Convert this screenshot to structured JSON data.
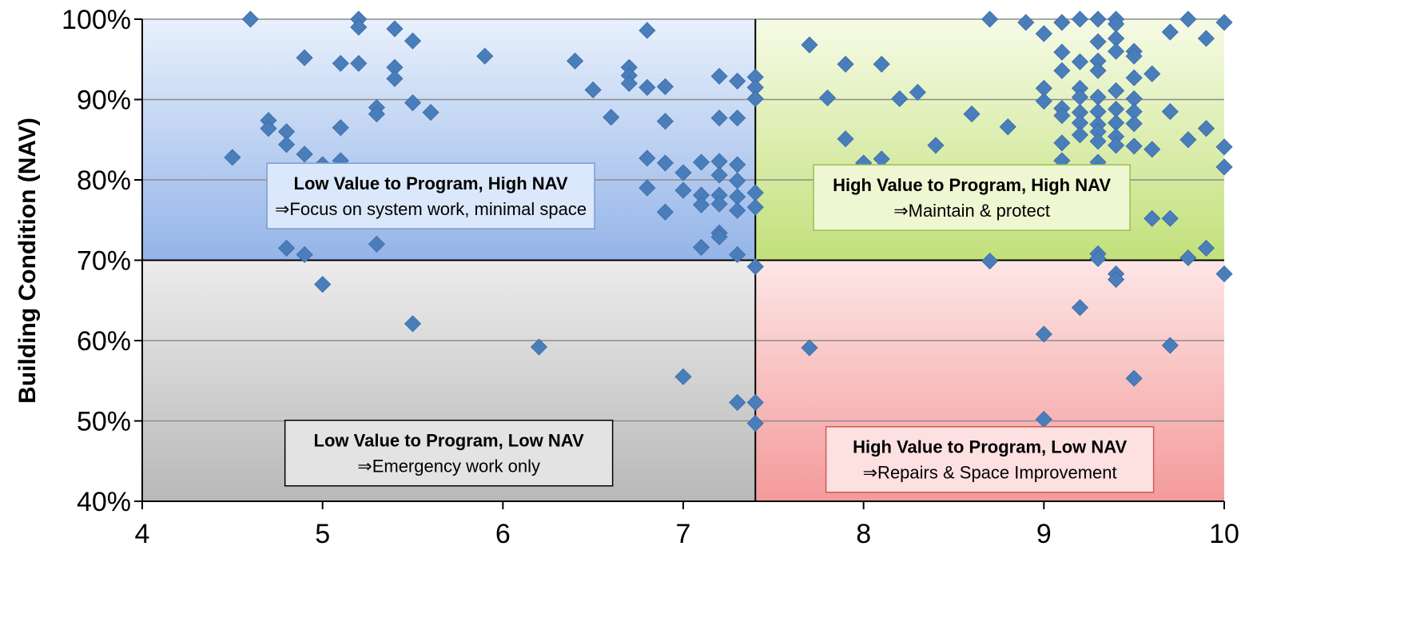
{
  "chart_data": {
    "type": "scatter",
    "title": "",
    "xlabel": "",
    "ylabel": "Building Condition (NAV)",
    "xlim": [
      4,
      10
    ],
    "ylim": [
      40,
      100
    ],
    "x_ticks": [
      "4",
      "5",
      "6",
      "7",
      "8",
      "9",
      "10"
    ],
    "y_ticks": [
      "40%",
      "50%",
      "60%",
      "70%",
      "80%",
      "90%",
      "100%"
    ],
    "grid": "horizontal",
    "marker_color": "#4a7ebb",
    "marker": "diamond",
    "divider": {
      "x": 7.4,
      "y": 70
    },
    "quadrants": [
      {
        "id": "top-left",
        "x_range": [
          4,
          7.4
        ],
        "y_range": [
          70,
          100
        ],
        "fill_top": "#e8f0fc",
        "fill_bottom": "#94b4e8",
        "title": "Low Value to Program, High NAV",
        "action": "⇒Focus on system work, minimal space",
        "box_at": {
          "x": 5.6,
          "y": 78
        }
      },
      {
        "id": "top-right",
        "x_range": [
          7.4,
          10
        ],
        "y_range": [
          70,
          100
        ],
        "fill_top": "#f6fbe6",
        "fill_bottom": "#c2e07a",
        "title": "High Value to Program, High NAV",
        "action": "⇒Maintain & protect",
        "box_at": {
          "x": 8.6,
          "y": 77.8
        }
      },
      {
        "id": "bottom-left",
        "x_range": [
          4,
          7.4
        ],
        "y_range": [
          40,
          70
        ],
        "fill_top": "#ececec",
        "fill_bottom": "#b8b8b8",
        "title": "Low Value to Program, Low NAV",
        "action": "⇒Emergency work only",
        "box_at": {
          "x": 5.7,
          "y": 46
        }
      },
      {
        "id": "bottom-right",
        "x_range": [
          7.4,
          10
        ],
        "y_range": [
          40,
          70
        ],
        "fill_top": "#fde6e6",
        "fill_bottom": "#f49a9a",
        "title": "High Value to Program, Low NAV",
        "action": "⇒Repairs & Space Improvement",
        "box_at": {
          "x": 8.7,
          "y": 45.2
        }
      }
    ],
    "points": [
      [
        4.5,
        82.8
      ],
      [
        4.6,
        100
      ],
      [
        4.7,
        87.4
      ],
      [
        4.7,
        86.4
      ],
      [
        4.8,
        86
      ],
      [
        4.8,
        84.4
      ],
      [
        4.8,
        71.5
      ],
      [
        4.9,
        83.2
      ],
      [
        4.9,
        95.2
      ],
      [
        4.9,
        70.7
      ],
      [
        5.0,
        81.9
      ],
      [
        5.0,
        67.0
      ],
      [
        5.1,
        94.5
      ],
      [
        5.1,
        86.5
      ],
      [
        5.1,
        82.4
      ],
      [
        5.2,
        100
      ],
      [
        5.2,
        99
      ],
      [
        5.2,
        94.5
      ],
      [
        5.3,
        89
      ],
      [
        5.3,
        88.2
      ],
      [
        5.3,
        72
      ],
      [
        5.4,
        98.8
      ],
      [
        5.4,
        94
      ],
      [
        5.4,
        92.6
      ],
      [
        5.5,
        97.3
      ],
      [
        5.5,
        89.6
      ],
      [
        5.5,
        62.1
      ],
      [
        5.6,
        88.4
      ],
      [
        5.9,
        95.4
      ],
      [
        6.2,
        59.2
      ],
      [
        6.4,
        94.8
      ],
      [
        6.5,
        91.2
      ],
      [
        6.6,
        87.8
      ],
      [
        6.7,
        94
      ],
      [
        6.7,
        93
      ],
      [
        6.7,
        92
      ],
      [
        6.8,
        98.6
      ],
      [
        6.8,
        91.5
      ],
      [
        6.8,
        82.7
      ],
      [
        6.8,
        79
      ],
      [
        6.9,
        91.6
      ],
      [
        6.9,
        87.3
      ],
      [
        6.9,
        82.1
      ],
      [
        6.9,
        76
      ],
      [
        7.0,
        80.9
      ],
      [
        7.0,
        78.7
      ],
      [
        7.0,
        55.5
      ],
      [
        7.1,
        82.2
      ],
      [
        7.1,
        78.1
      ],
      [
        7.1,
        76.9
      ],
      [
        7.1,
        71.6
      ],
      [
        7.2,
        92.9
      ],
      [
        7.2,
        87.7
      ],
      [
        7.2,
        82.3
      ],
      [
        7.2,
        80.6
      ],
      [
        7.2,
        78.1
      ],
      [
        7.2,
        77
      ],
      [
        7.2,
        73.4
      ],
      [
        7.2,
        72.9
      ],
      [
        7.3,
        92.3
      ],
      [
        7.3,
        87.7
      ],
      [
        7.3,
        81.9
      ],
      [
        7.3,
        79.9
      ],
      [
        7.3,
        77.9
      ],
      [
        7.3,
        76.2
      ],
      [
        7.3,
        70.7
      ],
      [
        7.3,
        52.3
      ],
      [
        7.4,
        92.8
      ],
      [
        7.4,
        91.5
      ],
      [
        7.4,
        90.1
      ],
      [
        7.4,
        78.4
      ],
      [
        7.4,
        76.6
      ],
      [
        7.4,
        69.2
      ],
      [
        7.4,
        52.3
      ],
      [
        7.4,
        49.7
      ],
      [
        7.7,
        96.8
      ],
      [
        7.7,
        59.1
      ],
      [
        7.8,
        90.2
      ],
      [
        7.9,
        94.4
      ],
      [
        7.9,
        85.1
      ],
      [
        8.0,
        82.1
      ],
      [
        8.1,
        94.4
      ],
      [
        8.1,
        82.6
      ],
      [
        8.2,
        90.1
      ],
      [
        8.3,
        90.9
      ],
      [
        8.4,
        84.3
      ],
      [
        8.6,
        88.2
      ],
      [
        8.7,
        100
      ],
      [
        8.7,
        69.9
      ],
      [
        8.8,
        86.6
      ],
      [
        8.9,
        99.6
      ],
      [
        9.0,
        98.2
      ],
      [
        9.0,
        91.4
      ],
      [
        9.0,
        89.8
      ],
      [
        9.0,
        60.8
      ],
      [
        9.0,
        50.2
      ],
      [
        9.1,
        99.6
      ],
      [
        9.1,
        95.9
      ],
      [
        9.1,
        93.6
      ],
      [
        9.1,
        88.9
      ],
      [
        9.1,
        88
      ],
      [
        9.1,
        84.6
      ],
      [
        9.1,
        82.4
      ],
      [
        9.1,
        80.8
      ],
      [
        9.1,
        78.4
      ],
      [
        9.2,
        100
      ],
      [
        9.2,
        94.7
      ],
      [
        9.2,
        91.4
      ],
      [
        9.2,
        90.3
      ],
      [
        9.2,
        88.4
      ],
      [
        9.2,
        87.1
      ],
      [
        9.2,
        85.6
      ],
      [
        9.2,
        64.1
      ],
      [
        9.3,
        100
      ],
      [
        9.3,
        97.2
      ],
      [
        9.3,
        94.8
      ],
      [
        9.3,
        93.6
      ],
      [
        9.3,
        90.3
      ],
      [
        9.3,
        88.5
      ],
      [
        9.3,
        86.9
      ],
      [
        9.3,
        86
      ],
      [
        9.3,
        84.8
      ],
      [
        9.3,
        82.2
      ],
      [
        9.3,
        81.3
      ],
      [
        9.3,
        70.8
      ],
      [
        9.3,
        70.2
      ],
      [
        9.4,
        100
      ],
      [
        9.4,
        99.4
      ],
      [
        9.4,
        97.6
      ],
      [
        9.4,
        96
      ],
      [
        9.4,
        91.1
      ],
      [
        9.4,
        88.8
      ],
      [
        9.4,
        87.1
      ],
      [
        9.4,
        85.4
      ],
      [
        9.4,
        84.3
      ],
      [
        9.4,
        68.3
      ],
      [
        9.4,
        67.6
      ],
      [
        9.5,
        96
      ],
      [
        9.5,
        95.4
      ],
      [
        9.5,
        92.7
      ],
      [
        9.5,
        90.1
      ],
      [
        9.5,
        88.5
      ],
      [
        9.5,
        87
      ],
      [
        9.5,
        84.2
      ],
      [
        9.5,
        55.3
      ],
      [
        9.6,
        93.2
      ],
      [
        9.6,
        83.8
      ],
      [
        9.6,
        75.2
      ],
      [
        9.7,
        98.4
      ],
      [
        9.7,
        88.5
      ],
      [
        9.7,
        75.2
      ],
      [
        9.7,
        59.4
      ],
      [
        9.8,
        100
      ],
      [
        9.8,
        85
      ],
      [
        9.8,
        70.3
      ],
      [
        9.9,
        97.6
      ],
      [
        9.9,
        86.4
      ],
      [
        9.9,
        71.5
      ],
      [
        10.0,
        99.6
      ],
      [
        10.0,
        84.1
      ],
      [
        10.0,
        81.6
      ],
      [
        10.0,
        68.3
      ]
    ]
  }
}
